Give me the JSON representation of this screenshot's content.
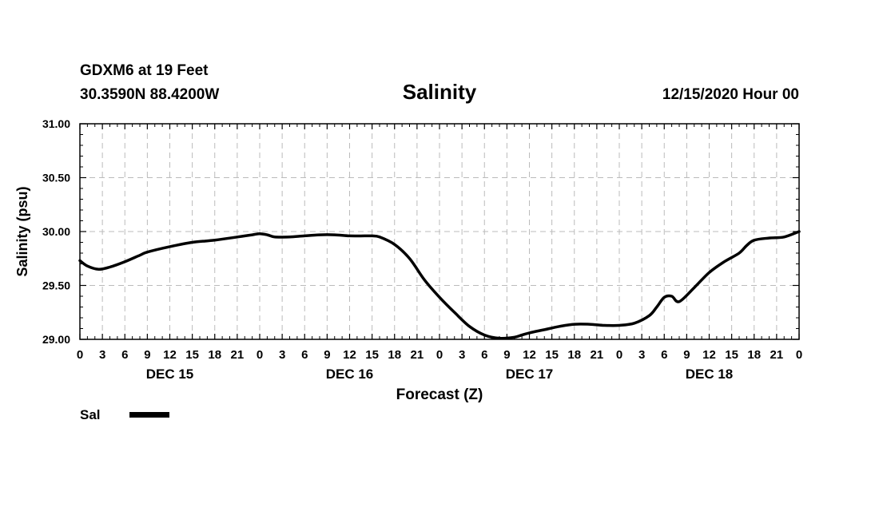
{
  "header": {
    "station": "GDXM6 at 19 Feet",
    "coords": "30.3590N 88.4200W",
    "title": "Salinity",
    "run": "12/15/2020 Hour 00"
  },
  "chart_data": {
    "type": "line",
    "title": "Salinity",
    "xlabel": "Forecast (Z)",
    "ylabel": "Salinity (psu)",
    "ylim": [
      29.0,
      31.0
    ],
    "yticks": [
      "29.00",
      "29.50",
      "30.00",
      "30.50",
      "31.00"
    ],
    "xlim_hours": [
      0,
      96
    ],
    "hour_ticks": [
      "0",
      "3",
      "6",
      "9",
      "12",
      "15",
      "18",
      "21",
      "0",
      "3",
      "6",
      "9",
      "12",
      "15",
      "18",
      "21",
      "0",
      "3",
      "6",
      "9",
      "12",
      "15",
      "18",
      "21",
      "0",
      "3",
      "6",
      "9",
      "12",
      "15",
      "18",
      "21",
      "0"
    ],
    "day_labels": [
      {
        "label": "DEC 15",
        "hour": 12
      },
      {
        "label": "DEC 16",
        "hour": 36
      },
      {
        "label": "DEC 17",
        "hour": 60
      },
      {
        "label": "DEC 18",
        "hour": 84
      }
    ],
    "grid": true,
    "legend": "bottom-left",
    "series": [
      {
        "name": "Sal",
        "color": "#000000",
        "x": [
          0,
          1,
          2.5,
          4,
          6,
          8,
          9,
          12,
          15,
          18,
          21,
          23,
          24,
          25,
          26,
          28,
          30,
          32,
          34,
          36,
          38,
          39,
          40,
          42,
          44,
          46,
          48,
          50,
          52,
          54,
          56,
          58,
          59,
          60,
          62,
          64,
          66,
          68,
          70,
          72,
          74,
          76,
          77,
          78,
          79,
          80,
          82,
          84,
          86,
          88,
          89,
          90,
          92,
          94,
          96
        ],
        "values": [
          29.73,
          29.68,
          29.65,
          29.67,
          29.72,
          29.78,
          29.81,
          29.86,
          29.9,
          29.92,
          29.95,
          29.97,
          29.98,
          29.97,
          29.95,
          29.95,
          29.96,
          29.97,
          29.97,
          29.96,
          29.96,
          29.96,
          29.95,
          29.88,
          29.75,
          29.55,
          29.39,
          29.25,
          29.12,
          29.04,
          29.01,
          29.02,
          29.04,
          29.06,
          29.09,
          29.12,
          29.14,
          29.14,
          29.13,
          29.13,
          29.15,
          29.22,
          29.3,
          29.39,
          29.4,
          29.35,
          29.48,
          29.62,
          29.72,
          29.8,
          29.87,
          29.92,
          29.94,
          29.95,
          30.0
        ]
      }
    ]
  }
}
